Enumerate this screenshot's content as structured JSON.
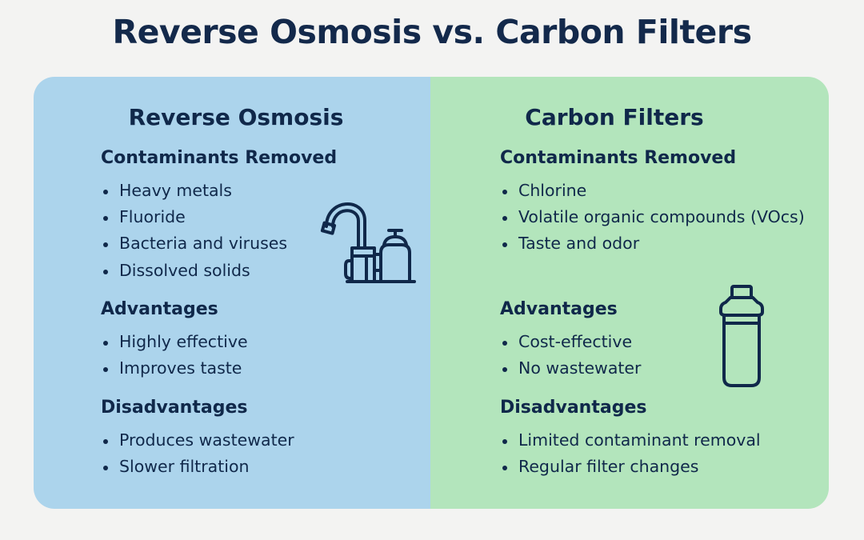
{
  "title": "Reverse Osmosis vs. Carbon Filters",
  "colors": {
    "left_panel": "#acd4ec",
    "right_panel": "#b3e5bc",
    "text": "#10284a"
  },
  "left": {
    "heading": "Reverse Osmosis",
    "icon": "faucet-filter-icon",
    "contaminants": {
      "heading": "Contaminants Removed",
      "items": [
        "Heavy metals",
        "Fluoride",
        "Bacteria and viruses",
        "Dissolved solids"
      ]
    },
    "advantages": {
      "heading": "Advantages",
      "items": [
        "Highly effective",
        "Improves taste"
      ]
    },
    "disadvantages": {
      "heading": "Disadvantages",
      "items": [
        "Produces wastewater",
        "Slower filtration"
      ]
    }
  },
  "right": {
    "heading": "Carbon Filters",
    "icon": "filter-cartridge-icon",
    "contaminants": {
      "heading": "Contaminants Removed",
      "items": [
        "Chlorine",
        "Volatile organic compounds (VOcs)",
        "Taste and odor"
      ]
    },
    "advantages": {
      "heading": "Advantages",
      "items": [
        "Cost-effective",
        "No wastewater"
      ]
    },
    "disadvantages": {
      "heading": "Disadvantages",
      "items": [
        "Limited contaminant removal",
        "Regular filter changes"
      ]
    }
  }
}
